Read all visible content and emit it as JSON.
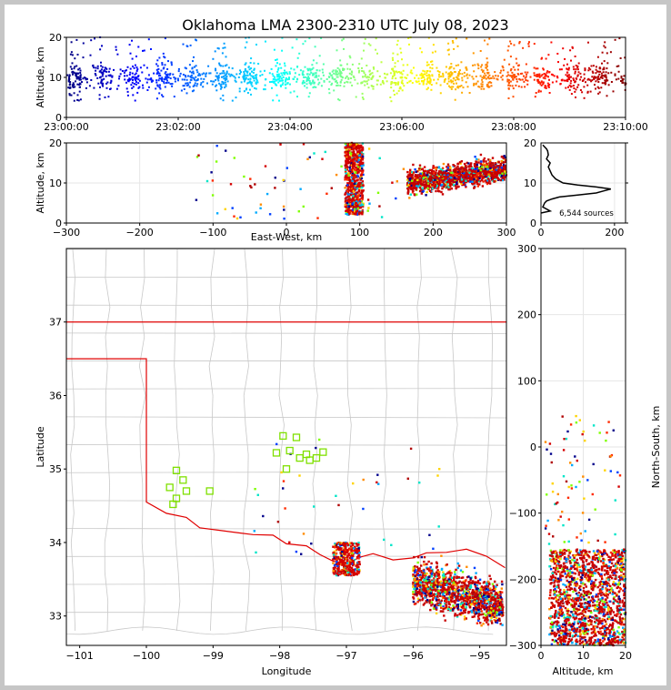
{
  "title": "Oklahoma LMA 2300-2310 UTC July 08, 2023",
  "source_count": "6,544 sources",
  "chart_data": [
    {
      "type": "scatter",
      "id": "time-altitude",
      "ylabel": "Altitude, km",
      "xlabel": "",
      "xlim": [
        "23:00:00",
        "23:10:00"
      ],
      "ylim": [
        0,
        20
      ],
      "x_ticks": [
        "23:00:00",
        "23:02:00",
        "23:04:00",
        "23:06:00",
        "23:08:00",
        "23:10:00"
      ],
      "y_ticks": [
        0,
        10,
        20
      ],
      "colormap": "jet (time)",
      "altitude_range_km": [
        2,
        20
      ],
      "dense_altitude_km": [
        5,
        15
      ]
    },
    {
      "type": "scatter",
      "id": "eastwest-altitude",
      "xlabel": "East-West, km",
      "ylabel": "Altitude, km",
      "xlim": [
        -300,
        300
      ],
      "ylim": [
        0,
        20
      ],
      "x_ticks": [
        -300,
        -200,
        -100,
        0,
        100,
        200,
        300
      ],
      "y_ticks": [
        0,
        10,
        20
      ],
      "grid": true,
      "clusters": [
        {
          "x_range": [
            80,
            105
          ],
          "y_range": [
            2,
            20
          ]
        },
        {
          "x_range": [
            165,
            300
          ],
          "y_range": [
            5,
            20
          ]
        }
      ]
    },
    {
      "type": "line",
      "id": "altitude-histogram",
      "xlabel": "",
      "ylabel": "",
      "xlim": [
        0,
        230
      ],
      "ylim": [
        0,
        20
      ],
      "x_ticks": [
        0,
        200
      ],
      "y_ticks": [
        0,
        10,
        20
      ],
      "grid": true,
      "annotation": "6,544 sources",
      "x": [
        0,
        25,
        5,
        10,
        15,
        30,
        50,
        100,
        150,
        170,
        190,
        150,
        100,
        60,
        40,
        30,
        25,
        20,
        25,
        15,
        20,
        18,
        15,
        10,
        5
      ],
      "y": [
        2.5,
        3,
        4,
        5,
        5.5,
        6,
        6.5,
        7,
        7.5,
        8,
        8.5,
        9,
        9.5,
        10,
        11,
        12,
        13,
        14,
        15,
        16,
        17,
        18,
        18.5,
        19,
        19.5
      ]
    },
    {
      "type": "scatter",
      "id": "plan-view",
      "xlabel": "Longitude",
      "ylabel": "Latitude",
      "xlim": [
        -101.2,
        -94.6
      ],
      "ylim": [
        32.6,
        38
      ],
      "x_ticks": [
        -101,
        -100,
        -99,
        -98,
        -97,
        -96,
        -95
      ],
      "y_ticks": [
        33,
        34,
        35,
        36,
        37
      ],
      "stations": [
        [
          -99.55,
          34.98
        ],
        [
          -99.45,
          34.85
        ],
        [
          -99.65,
          34.75
        ],
        [
          -99.4,
          34.7
        ],
        [
          -99.55,
          34.6
        ],
        [
          -99.6,
          34.52
        ],
        [
          -99.05,
          34.7
        ],
        [
          -97.95,
          35.45
        ],
        [
          -97.75,
          35.43
        ],
        [
          -98.05,
          35.22
        ],
        [
          -97.85,
          35.25
        ],
        [
          -97.7,
          35.15
        ],
        [
          -97.6,
          35.2
        ],
        [
          -97.55,
          35.12
        ],
        [
          -97.45,
          35.15
        ],
        [
          -97.35,
          35.23
        ],
        [
          -97.9,
          35.0
        ]
      ],
      "clusters": [
        {
          "lon_range": [
            -97.2,
            -96.8
          ],
          "lat_range": [
            33.55,
            34.0
          ]
        },
        {
          "lon_range": [
            -96.0,
            -94.65
          ],
          "lat_range": [
            32.8,
            33.8
          ]
        }
      ]
    },
    {
      "type": "scatter",
      "id": "altitude-northsouth",
      "xlabel": "Altitude, km",
      "ylabel": "North-South, km",
      "xlim": [
        0,
        20
      ],
      "ylim": [
        -300,
        300
      ],
      "x_ticks": [
        0,
        10,
        20
      ],
      "y_ticks": [
        -300,
        -200,
        -100,
        0,
        100,
        200,
        300
      ],
      "grid": true,
      "clusters": [
        {
          "x_range": [
            2,
            20
          ],
          "y_range": [
            -300,
            -155
          ]
        }
      ]
    }
  ]
}
